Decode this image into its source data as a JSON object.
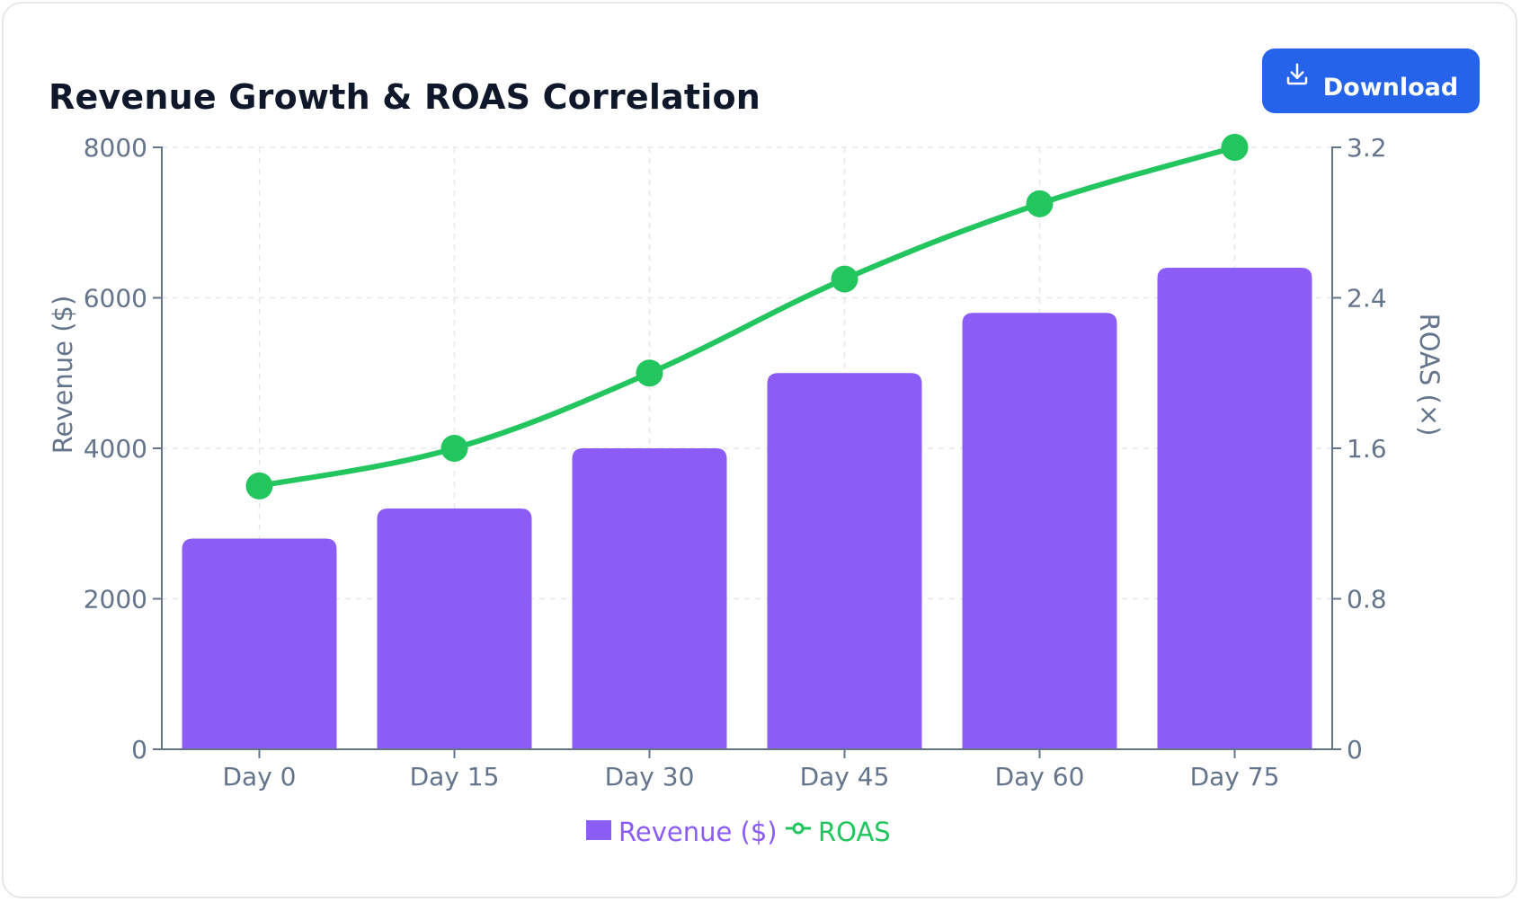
{
  "header": {
    "title": "Revenue Growth & ROAS Correlation",
    "download_label": "Download",
    "download_icon": "download-icon"
  },
  "colors": {
    "bar": "#8b5cf6",
    "line": "#22c55e",
    "button": "#2563eb",
    "axis": "#64748b",
    "grid": "#e5e7eb"
  },
  "chart_data": {
    "type": "bar",
    "categories": [
      "Day 0",
      "Day 15",
      "Day 30",
      "Day 45",
      "Day 60",
      "Day 75"
    ],
    "series": [
      {
        "name": "Revenue ($)",
        "type": "bar",
        "axis": "left",
        "values": [
          2800,
          3200,
          4000,
          5000,
          5800,
          6400
        ]
      },
      {
        "name": "ROAS",
        "type": "line",
        "axis": "right",
        "values": [
          1.4,
          1.6,
          2.0,
          2.5,
          2.9,
          3.2
        ]
      }
    ],
    "y_left": {
      "label": "Revenue ($)",
      "range": [
        0,
        8000
      ],
      "ticks": [
        "0",
        "2000",
        "4000",
        "6000",
        "8000"
      ]
    },
    "y_right": {
      "label": "ROAS (×)",
      "range": [
        0,
        3.2
      ],
      "ticks": [
        "0",
        "0.8",
        "1.6",
        "2.4",
        "3.2"
      ]
    },
    "grid": true,
    "legend": "bottom-center"
  }
}
